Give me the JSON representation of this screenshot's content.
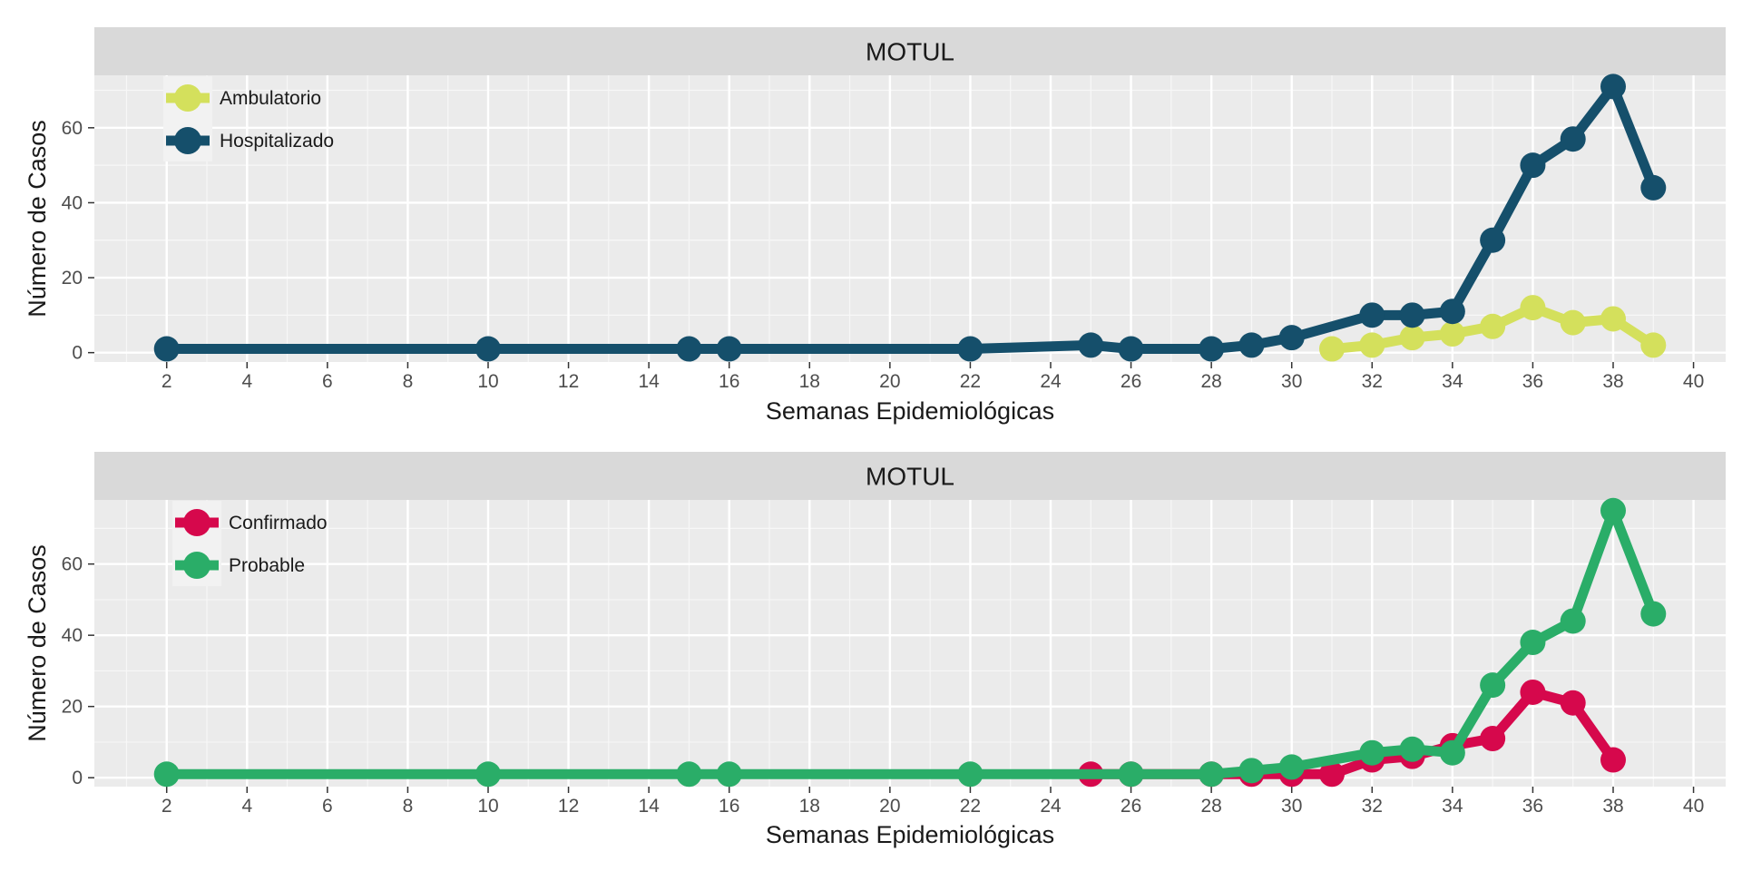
{
  "chart_data": [
    {
      "type": "line",
      "title": "MOTUL",
      "xlabel": "Semanas Epidemiológicas",
      "ylabel": "Número de Casos",
      "xlim": [
        0.2,
        40.8
      ],
      "ylim": [
        -2.5,
        74.0
      ],
      "x_ticks": [
        2,
        4,
        6,
        8,
        10,
        12,
        14,
        16,
        18,
        20,
        22,
        24,
        26,
        28,
        30,
        32,
        34,
        36,
        38,
        40
      ],
      "x_minor_ticks": [
        1,
        3,
        5,
        7,
        9,
        11,
        13,
        15,
        17,
        19,
        21,
        23,
        25,
        27,
        29,
        31,
        33,
        35,
        37,
        39
      ],
      "y_ticks": [
        0,
        20,
        40,
        60
      ],
      "y_minor_ticks": [
        10,
        30,
        50,
        70
      ],
      "grid": true,
      "legend_position": "top-left",
      "series": [
        {
          "name": "Ambulatorio",
          "color": "#d4e05c",
          "x": [
            31,
            32,
            33,
            34,
            35,
            36,
            37,
            38,
            39
          ],
          "y": [
            1,
            2,
            4,
            5,
            7,
            12,
            8,
            9,
            2
          ]
        },
        {
          "name": "Hospitalizado",
          "color": "#154f6b",
          "x": [
            2,
            10,
            15,
            16,
            22,
            25,
            26,
            28,
            29,
            30,
            32,
            33,
            34,
            35,
            36,
            37,
            38,
            39
          ],
          "y": [
            1,
            1,
            1,
            1,
            1,
            2,
            1,
            1,
            2,
            4,
            10,
            10,
            11,
            30,
            50,
            57,
            71,
            44
          ]
        }
      ]
    },
    {
      "type": "line",
      "title": "MOTUL",
      "xlabel": "Semanas Epidemiológicas",
      "ylabel": "Número de Casos",
      "xlim": [
        0.2,
        40.8
      ],
      "ylim": [
        -2.5,
        78.0
      ],
      "x_ticks": [
        2,
        4,
        6,
        8,
        10,
        12,
        14,
        16,
        18,
        20,
        22,
        24,
        26,
        28,
        30,
        32,
        34,
        36,
        38,
        40
      ],
      "x_minor_ticks": [
        1,
        3,
        5,
        7,
        9,
        11,
        13,
        15,
        17,
        19,
        21,
        23,
        25,
        27,
        29,
        31,
        33,
        35,
        37,
        39
      ],
      "y_ticks": [
        0,
        20,
        40,
        60
      ],
      "y_minor_ticks": [
        10,
        30,
        50,
        70
      ],
      "grid": true,
      "legend_position": "top-left",
      "series": [
        {
          "name": "Confirmado",
          "color": "#d6084c",
          "x": [
            25,
            26,
            28,
            29,
            30,
            31,
            32,
            33,
            34,
            35,
            36,
            37,
            38
          ],
          "y": [
            1,
            1,
            1,
            1,
            1,
            1,
            5,
            6,
            9,
            11,
            24,
            21,
            5
          ]
        },
        {
          "name": "Probable",
          "color": "#2aad68",
          "x": [
            2,
            10,
            15,
            16,
            22,
            26,
            28,
            29,
            30,
            32,
            33,
            34,
            35,
            36,
            37,
            38,
            39
          ],
          "y": [
            1,
            1,
            1,
            1,
            1,
            1,
            1,
            2,
            3,
            7,
            8,
            7,
            26,
            38,
            44,
            75,
            46
          ]
        }
      ]
    }
  ]
}
